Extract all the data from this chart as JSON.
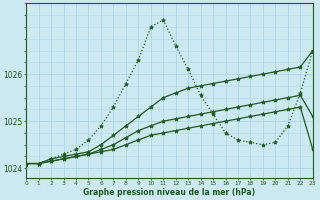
{
  "xlabel": "Graphe pression niveau de la mer (hPa)",
  "xlim": [
    0,
    23
  ],
  "ylim": [
    1023.8,
    1027.5
  ],
  "yticks": [
    1024,
    1025,
    1026
  ],
  "xticks": [
    0,
    1,
    2,
    3,
    4,
    5,
    6,
    7,
    8,
    9,
    10,
    11,
    12,
    13,
    14,
    15,
    16,
    17,
    18,
    19,
    20,
    21,
    22,
    23
  ],
  "bg_color": "#cce8f0",
  "line_color": "#1e5c1e",
  "grid_color": "#b0d8e8",
  "curves": [
    {
      "x": [
        0,
        1,
        2,
        3,
        4,
        5,
        6,
        7,
        8,
        9,
        10,
        11,
        12,
        13,
        14,
        15,
        16,
        17,
        18,
        19,
        20,
        21,
        22,
        23
      ],
      "y": [
        1024.1,
        1024.1,
        1024.15,
        1024.2,
        1024.25,
        1024.3,
        1024.35,
        1024.4,
        1024.5,
        1024.6,
        1024.7,
        1024.75,
        1024.8,
        1024.85,
        1024.9,
        1024.95,
        1025.0,
        1025.05,
        1025.1,
        1025.15,
        1025.2,
        1025.25,
        1025.3,
        1024.4
      ],
      "style": "-",
      "marker": "*",
      "markersize": 3,
      "linewidth": 0.9
    },
    {
      "x": [
        0,
        1,
        2,
        3,
        4,
        5,
        6,
        7,
        8,
        9,
        10,
        11,
        12,
        13,
        14,
        15,
        16,
        17,
        18,
        19,
        20,
        21,
        22,
        23
      ],
      "y": [
        1024.1,
        1024.1,
        1024.15,
        1024.2,
        1024.25,
        1024.3,
        1024.4,
        1024.5,
        1024.65,
        1024.8,
        1024.9,
        1025.0,
        1025.05,
        1025.1,
        1025.15,
        1025.2,
        1025.25,
        1025.3,
        1025.35,
        1025.4,
        1025.45,
        1025.5,
        1025.55,
        1025.1
      ],
      "style": "-",
      "marker": "*",
      "markersize": 3,
      "linewidth": 0.9
    },
    {
      "x": [
        0,
        1,
        2,
        3,
        4,
        5,
        6,
        7,
        8,
        9,
        10,
        11,
        12,
        13,
        14,
        15,
        16,
        17,
        18,
        19,
        20,
        21,
        22,
        23
      ],
      "y": [
        1024.1,
        1024.1,
        1024.2,
        1024.25,
        1024.3,
        1024.35,
        1024.5,
        1024.7,
        1024.9,
        1025.1,
        1025.3,
        1025.5,
        1025.6,
        1025.7,
        1025.75,
        1025.8,
        1025.85,
        1025.9,
        1025.95,
        1026.0,
        1026.05,
        1026.1,
        1026.15,
        1026.5
      ],
      "style": "-",
      "marker": "*",
      "markersize": 3,
      "linewidth": 0.9
    },
    {
      "x": [
        0,
        1,
        2,
        3,
        4,
        5,
        6,
        7,
        8,
        9,
        10,
        11,
        12,
        13,
        14,
        15,
        16,
        17,
        18,
        19,
        20,
        21,
        22,
        23
      ],
      "y": [
        1024.1,
        1024.1,
        1024.2,
        1024.3,
        1024.4,
        1024.6,
        1024.9,
        1025.3,
        1025.8,
        1026.3,
        1027.0,
        1027.15,
        1026.6,
        1026.1,
        1025.55,
        1025.15,
        1024.75,
        1024.6,
        1024.55,
        1024.5,
        1024.55,
        1024.9,
        1025.6,
        1026.5
      ],
      "style": ":",
      "marker": "*",
      "markersize": 3,
      "linewidth": 0.9
    }
  ]
}
